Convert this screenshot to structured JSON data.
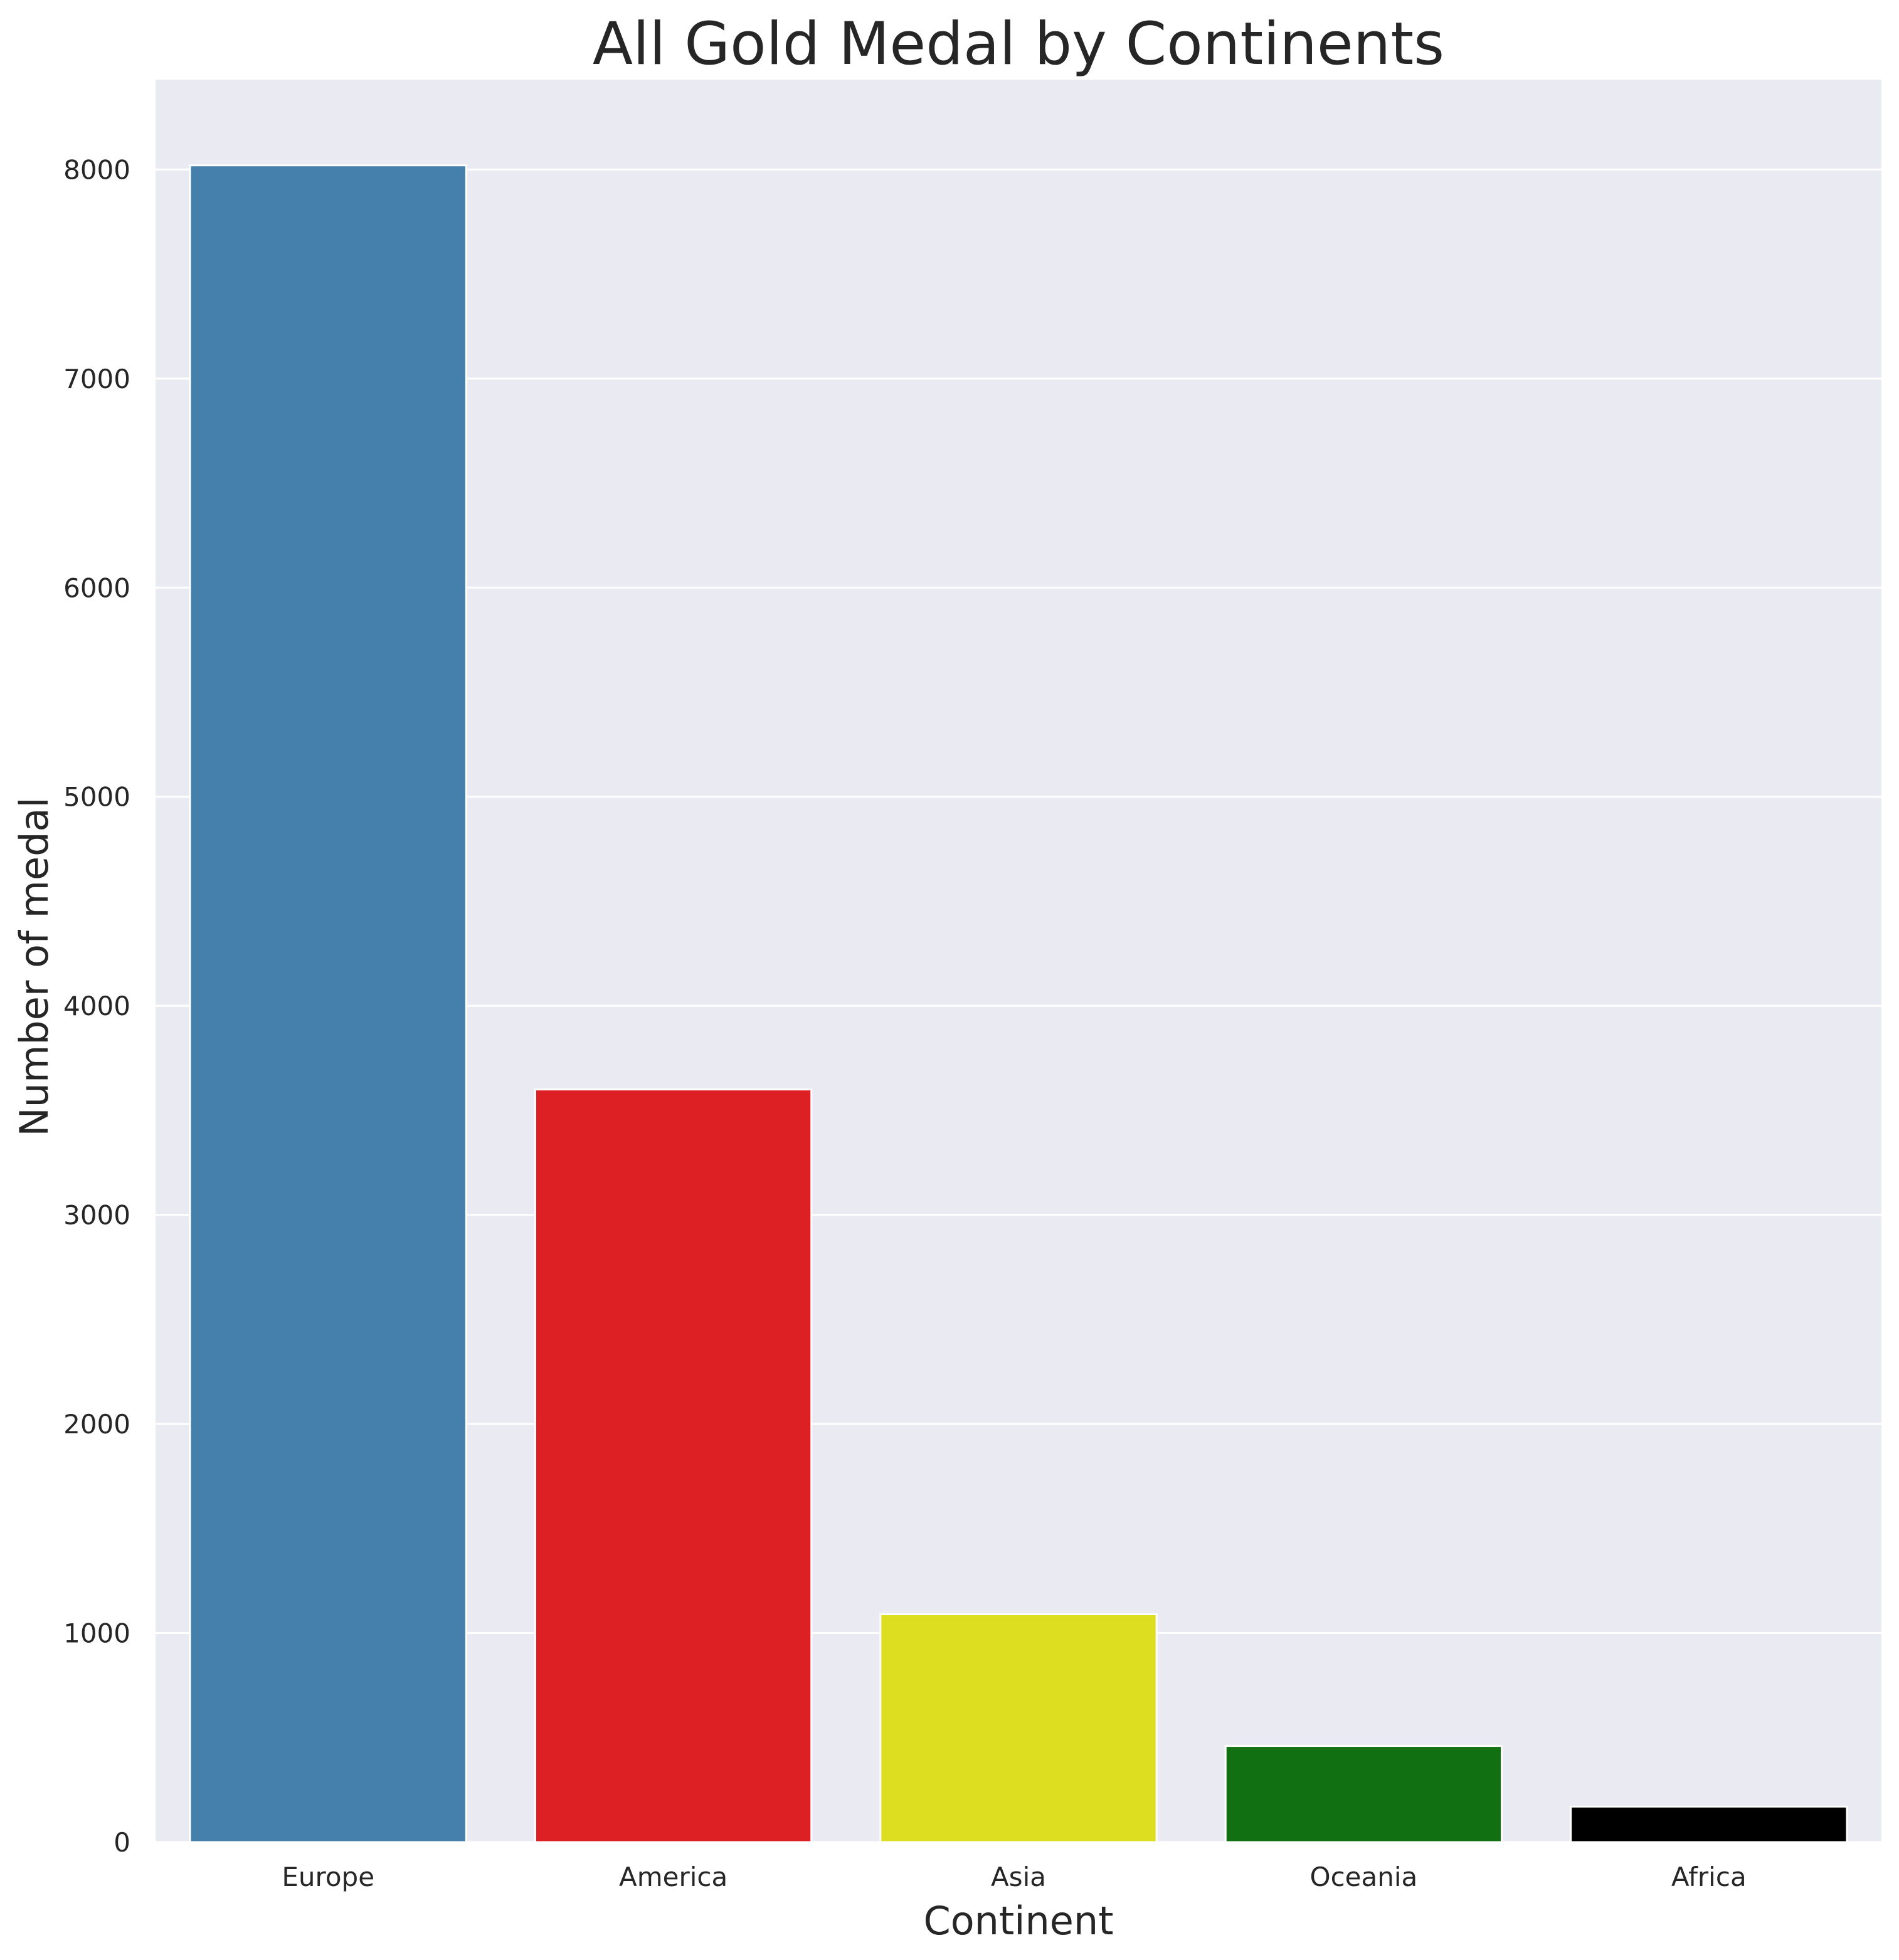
{
  "chart_data": {
    "type": "bar",
    "title": "All Gold Medal by Continents",
    "xlabel": "Continent",
    "ylabel": "Number of medal",
    "categories": [
      "Europe",
      "America",
      "Asia",
      "Oceania",
      "Africa"
    ],
    "values": [
      8020,
      3600,
      1090,
      460,
      170
    ],
    "colors": [
      "#4480ab",
      "#dd2024",
      "#dede20",
      "#107012",
      "#000000"
    ],
    "ylim": [
      0,
      8430
    ],
    "yticks": [
      0,
      1000,
      2000,
      3000,
      4000,
      5000,
      6000,
      7000,
      8000
    ],
    "grid": true,
    "background_color": "#eaeaf2",
    "grid_color": "#ffffff"
  }
}
